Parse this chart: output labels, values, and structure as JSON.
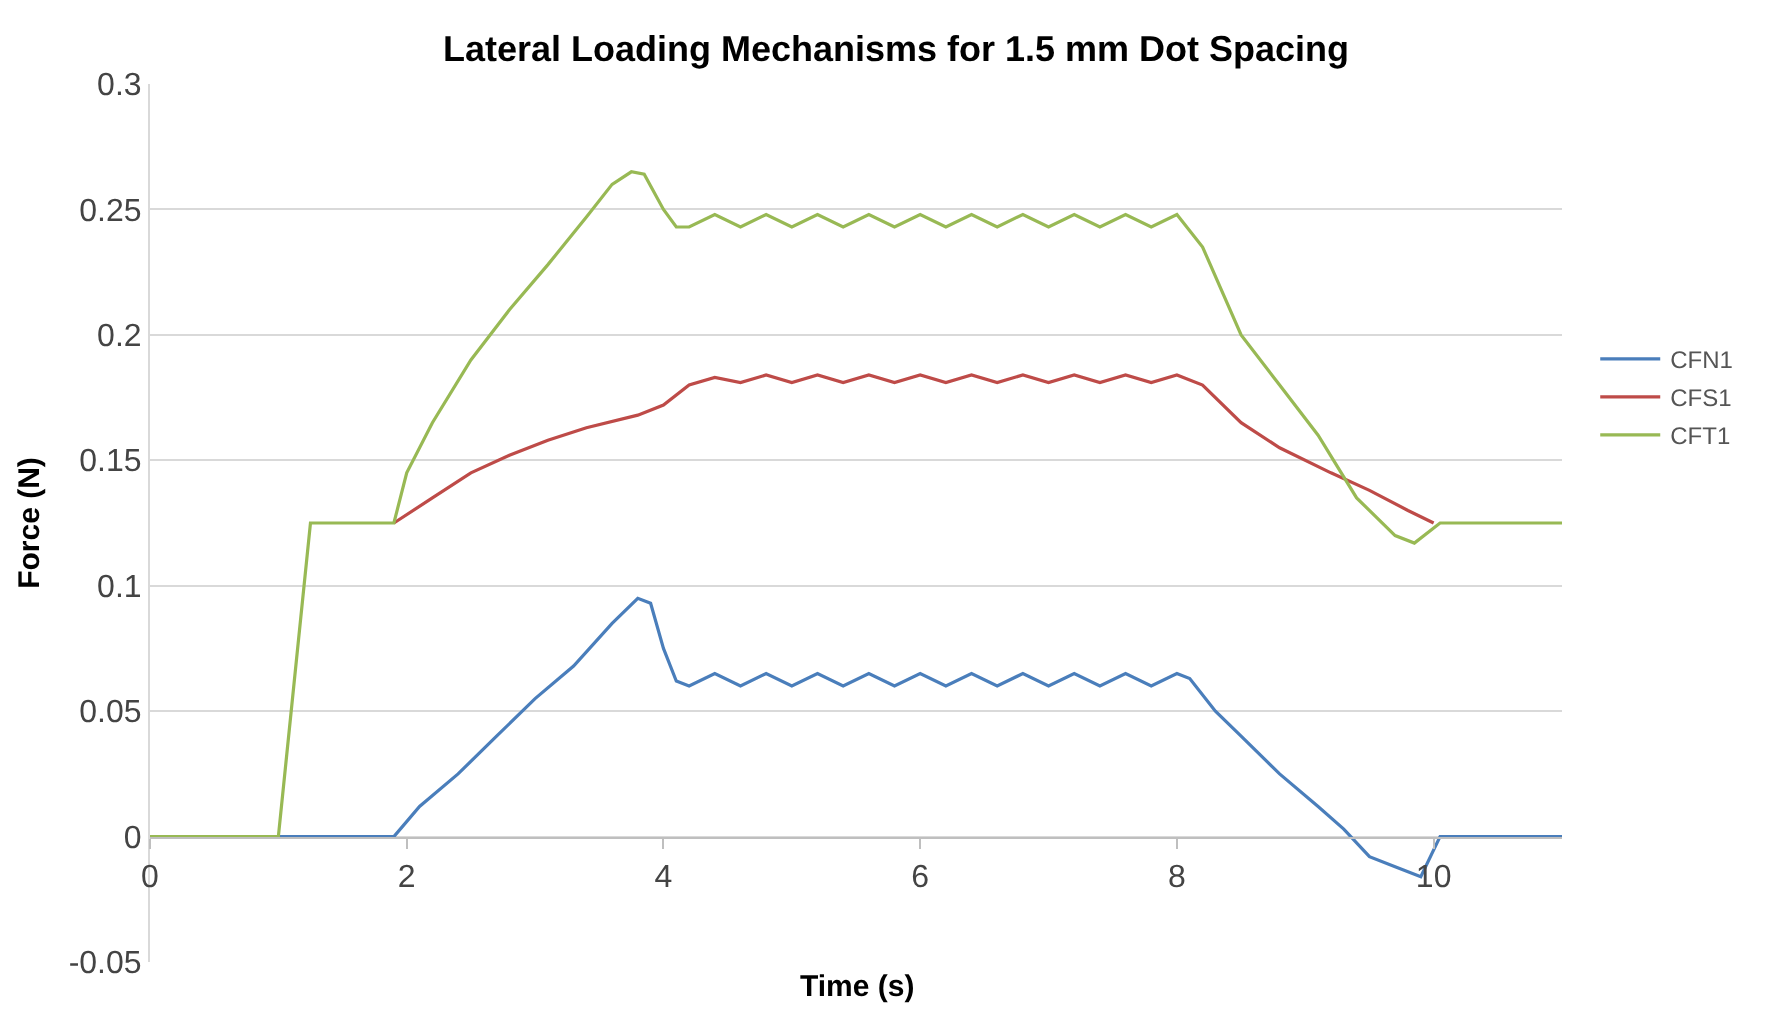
{
  "chart_data": {
    "type": "line",
    "title": "Lateral Loading Mechanisms for 1.5 mm Dot Spacing",
    "xlabel": "Time (s)",
    "ylabel": "Force (N)",
    "xlim": [
      0,
      11
    ],
    "xticks": [
      0,
      2,
      4,
      6,
      8,
      10
    ],
    "ylim": [
      -0.05,
      0.3
    ],
    "yticks": [
      -0.05,
      0,
      0.05,
      0.1,
      0.15,
      0.2,
      0.25,
      0.3
    ],
    "grid": "y",
    "legend": "right",
    "marker": "none",
    "line_style": "solid",
    "series": [
      {
        "name": "CFN1",
        "color": "#4a7ebb",
        "x": [
          0,
          1.9,
          2.1,
          2.4,
          2.7,
          3.0,
          3.3,
          3.6,
          3.8,
          3.9,
          4.0,
          4.1,
          4.2,
          4.4,
          4.6,
          4.8,
          5.0,
          5.2,
          5.4,
          5.6,
          5.8,
          6.0,
          6.2,
          6.4,
          6.6,
          6.8,
          7.0,
          7.2,
          7.4,
          7.6,
          7.8,
          8.0,
          8.1,
          8.3,
          8.5,
          8.8,
          9.1,
          9.3,
          9.5,
          9.7,
          9.9,
          10.05,
          11
        ],
        "values": [
          0,
          0,
          0.012,
          0.025,
          0.04,
          0.055,
          0.068,
          0.085,
          0.095,
          0.093,
          0.075,
          0.062,
          0.06,
          0.065,
          0.06,
          0.065,
          0.06,
          0.065,
          0.06,
          0.065,
          0.06,
          0.065,
          0.06,
          0.065,
          0.06,
          0.065,
          0.06,
          0.065,
          0.06,
          0.065,
          0.06,
          0.065,
          0.063,
          0.05,
          0.04,
          0.025,
          0.012,
          0.003,
          -0.008,
          -0.012,
          -0.016,
          0,
          0
        ]
      },
      {
        "name": "CFS1",
        "color": "#be4b48",
        "x": [
          0,
          1.0,
          1.25,
          1.9,
          2.2,
          2.5,
          2.8,
          3.1,
          3.4,
          3.8,
          4.0,
          4.2,
          4.4,
          4.6,
          4.8,
          5.0,
          5.2,
          5.4,
          5.6,
          5.8,
          6.0,
          6.2,
          6.4,
          6.6,
          6.8,
          7.0,
          7.2,
          7.4,
          7.6,
          7.8,
          8.0,
          8.2,
          8.5,
          8.8,
          9.2,
          9.5,
          9.8,
          10.0
        ],
        "values": [
          0,
          0,
          null,
          0.125,
          0.135,
          0.145,
          0.152,
          0.158,
          0.163,
          0.168,
          0.172,
          0.18,
          0.183,
          0.181,
          0.184,
          0.181,
          0.184,
          0.181,
          0.184,
          0.181,
          0.184,
          0.181,
          0.184,
          0.181,
          0.184,
          0.181,
          0.184,
          0.181,
          0.184,
          0.181,
          0.184,
          0.18,
          0.165,
          0.155,
          0.145,
          0.138,
          0.13,
          0.125
        ]
      },
      {
        "name": "CFT1",
        "color": "#98b954",
        "x": [
          0,
          1.0,
          1.25,
          1.9,
          2.0,
          2.2,
          2.5,
          2.8,
          3.1,
          3.4,
          3.6,
          3.75,
          3.85,
          4.0,
          4.1,
          4.2,
          4.4,
          4.6,
          4.8,
          5.0,
          5.2,
          5.4,
          5.6,
          5.8,
          6.0,
          6.2,
          6.4,
          6.6,
          6.8,
          7.0,
          7.2,
          7.4,
          7.6,
          7.8,
          8.0,
          8.2,
          8.5,
          8.8,
          9.1,
          9.4,
          9.7,
          9.85,
          10.05,
          11
        ],
        "values": [
          0,
          0,
          0.125,
          0.125,
          0.145,
          0.165,
          0.19,
          0.21,
          0.228,
          0.247,
          0.26,
          0.265,
          0.264,
          0.25,
          0.243,
          0.243,
          0.248,
          0.243,
          0.248,
          0.243,
          0.248,
          0.243,
          0.248,
          0.243,
          0.248,
          0.243,
          0.248,
          0.243,
          0.248,
          0.243,
          0.248,
          0.243,
          0.248,
          0.243,
          0.248,
          0.235,
          0.2,
          0.18,
          0.16,
          0.135,
          0.12,
          0.117,
          0.125,
          0.125
        ]
      }
    ]
  }
}
